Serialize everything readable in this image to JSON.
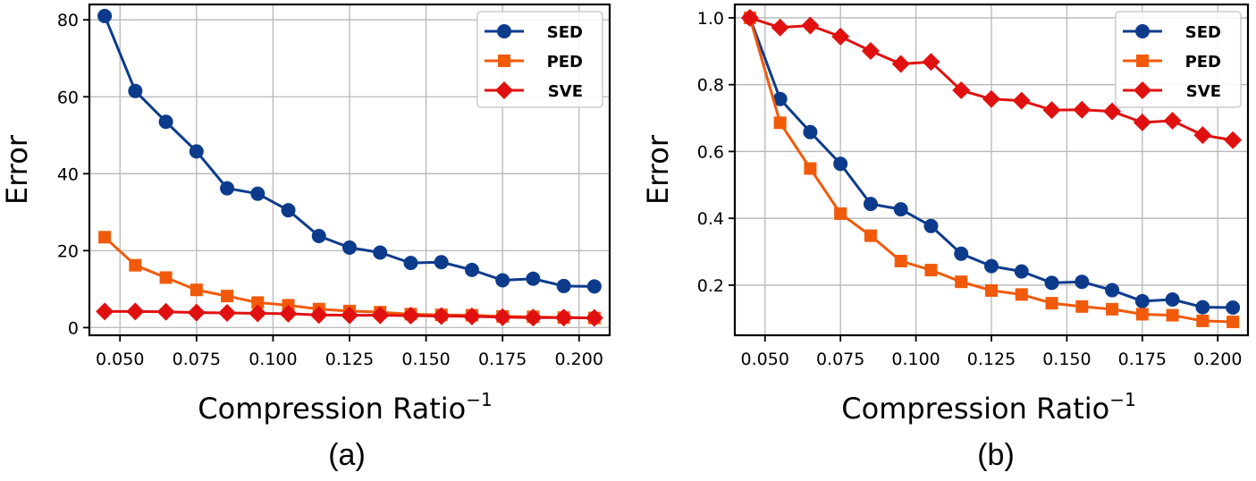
{
  "chart_data": [
    {
      "type": "line",
      "caption": "(a)",
      "xlabel": "Compression Ratio",
      "xlabel_sup": "−1",
      "ylabel": "Error",
      "xlim": [
        0.04,
        0.21
      ],
      "ylim": [
        -2,
        84
      ],
      "xticks": [
        0.05,
        0.075,
        0.1,
        0.125,
        0.15,
        0.175,
        0.2
      ],
      "xtick_labels": [
        "0.050",
        "0.075",
        "0.100",
        "0.125",
        "0.150",
        "0.175",
        "0.200"
      ],
      "yticks": [
        0,
        20,
        40,
        60,
        80
      ],
      "ytick_labels": [
        "0",
        "20",
        "40",
        "60",
        "80"
      ],
      "grid": true,
      "legend": "top-right",
      "x": [
        0.045,
        0.055,
        0.065,
        0.075,
        0.085,
        0.095,
        0.105,
        0.115,
        0.125,
        0.135,
        0.145,
        0.155,
        0.165,
        0.175,
        0.185,
        0.195,
        0.205
      ],
      "series": [
        {
          "name": "SED",
          "color": "#0d3b8c",
          "marker": "circle",
          "values": [
            81,
            61.5,
            53.5,
            45.8,
            36.2,
            34.8,
            30.5,
            23.8,
            20.8,
            19.5,
            16.8,
            17,
            15,
            12.3,
            12.7,
            10.8,
            10.7
          ]
        },
        {
          "name": "PED",
          "color": "#f05a0a",
          "marker": "square",
          "values": [
            23.5,
            16.2,
            13,
            9.8,
            8.2,
            6.5,
            5.8,
            4.8,
            4.3,
            4,
            3.5,
            3.3,
            3.2,
            2.9,
            2.8,
            2.6,
            2.5
          ]
        },
        {
          "name": "SVE",
          "color": "#e01010",
          "marker": "diamond",
          "values": [
            4.2,
            4.2,
            4.1,
            3.9,
            3.8,
            3.7,
            3.6,
            3.3,
            3.2,
            3.2,
            3.1,
            3,
            2.9,
            2.7,
            2.6,
            2.6,
            2.5
          ]
        }
      ]
    },
    {
      "type": "line",
      "caption": "(b)",
      "xlabel": "Compression Ratio",
      "xlabel_sup": "−1",
      "ylabel": "Error",
      "xlim": [
        0.04,
        0.21
      ],
      "ylim": [
        0.05,
        1.04
      ],
      "xticks": [
        0.05,
        0.075,
        0.1,
        0.125,
        0.15,
        0.175,
        0.2
      ],
      "xtick_labels": [
        "0.050",
        "0.075",
        "0.100",
        "0.125",
        "0.150",
        "0.175",
        "0.200"
      ],
      "yticks": [
        0.2,
        0.4,
        0.6,
        0.8,
        1.0
      ],
      "ytick_labels": [
        "0.2",
        "0.4",
        "0.6",
        "0.8",
        "1.0"
      ],
      "grid": true,
      "legend": "top-right",
      "x": [
        0.045,
        0.055,
        0.065,
        0.075,
        0.085,
        0.095,
        0.105,
        0.115,
        0.125,
        0.135,
        0.145,
        0.155,
        0.165,
        0.175,
        0.185,
        0.195,
        0.205
      ],
      "series": [
        {
          "name": "SED",
          "color": "#0d3b8c",
          "marker": "circle",
          "values": [
            1.0,
            0.757,
            0.658,
            0.563,
            0.443,
            0.427,
            0.377,
            0.294,
            0.257,
            0.241,
            0.207,
            0.21,
            0.185,
            0.152,
            0.157,
            0.134,
            0.133
          ]
        },
        {
          "name": "PED",
          "color": "#f05a0a",
          "marker": "square",
          "values": [
            1.0,
            0.686,
            0.549,
            0.414,
            0.348,
            0.272,
            0.245,
            0.21,
            0.184,
            0.172,
            0.146,
            0.136,
            0.128,
            0.113,
            0.11,
            0.093,
            0.09
          ]
        },
        {
          "name": "SVE",
          "color": "#e01010",
          "marker": "diamond",
          "values": [
            1.0,
            0.971,
            0.977,
            0.944,
            0.901,
            0.862,
            0.868,
            0.783,
            0.757,
            0.752,
            0.724,
            0.725,
            0.72,
            0.687,
            0.692,
            0.649,
            0.634
          ]
        }
      ]
    }
  ]
}
